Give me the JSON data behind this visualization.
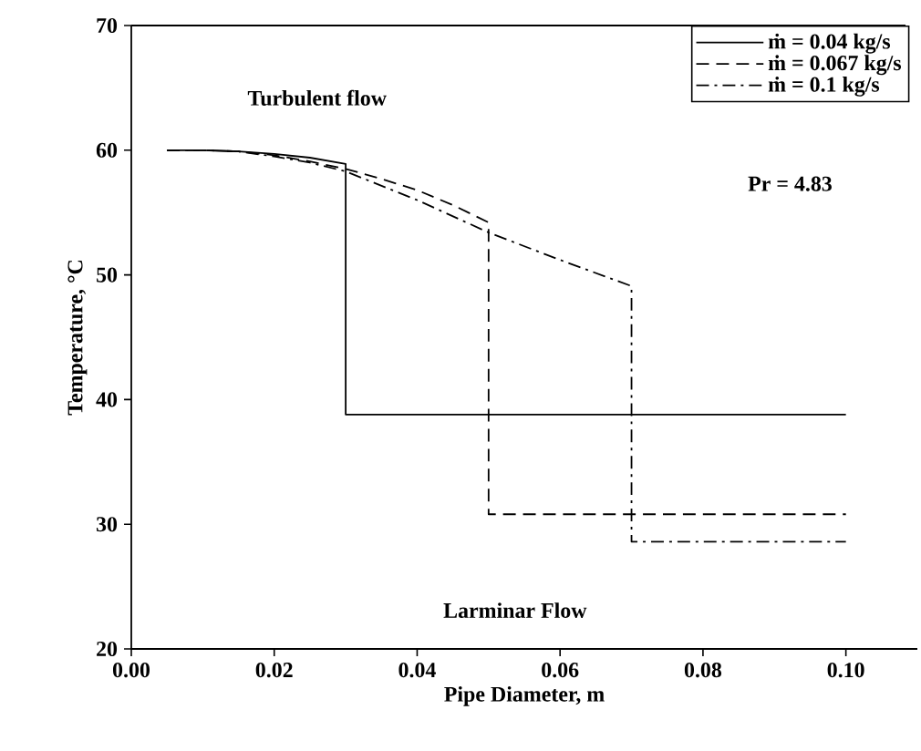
{
  "chart_data": {
    "type": "line",
    "xlabel": "Pipe Diameter, m",
    "ylabel": "Temperature, °C",
    "series": [
      {
        "name": "ṁ = 0.04 kg/s",
        "color": "#000000",
        "line_style": "solid",
        "x": [
          0.005,
          0.01,
          0.015,
          0.02,
          0.025,
          0.03,
          0.03,
          0.1
        ],
        "values": [
          60,
          60,
          59.9,
          59.7,
          59.4,
          58.9,
          38.8,
          38.8
        ]
      },
      {
        "name": "ṁ = 0.067 kg/s",
        "color": "#000000",
        "line_style": "dashed",
        "x": [
          0.005,
          0.01,
          0.015,
          0.02,
          0.025,
          0.03,
          0.035,
          0.04,
          0.045,
          0.05,
          0.05,
          0.1
        ],
        "values": [
          60,
          60,
          59.9,
          59.6,
          59.1,
          58.5,
          57.7,
          56.8,
          55.6,
          54.2,
          30.8,
          30.8
        ]
      },
      {
        "name": "ṁ = 0.1 kg/s",
        "color": "#000000",
        "line_style": "dashdot",
        "x": [
          0.005,
          0.01,
          0.015,
          0.02,
          0.025,
          0.03,
          0.04,
          0.05,
          0.06,
          0.07,
          0.07,
          0.1
        ],
        "values": [
          60,
          60,
          59.9,
          59.5,
          59.0,
          58.3,
          56.0,
          53.4,
          51.2,
          49.1,
          28.6,
          28.6
        ]
      }
    ],
    "annotations": [
      "Turbulent flow",
      "Pr = 4.83",
      "Larminar Flow"
    ],
    "xlim": [
      0,
      0.11
    ],
    "ylim": [
      20,
      70
    ],
    "xticks": [
      {
        "value": 0,
        "label": "0.00"
      },
      {
        "value": 0.02,
        "label": "0.02"
      },
      {
        "value": 0.04,
        "label": "0.04"
      },
      {
        "value": 0.06,
        "label": "0.06"
      },
      {
        "value": 0.08,
        "label": "0.08"
      },
      {
        "value": 0.1,
        "label": "0.10"
      }
    ],
    "yticks": [
      20,
      30,
      40,
      50,
      60,
      70
    ],
    "grid": false,
    "legend": "top right",
    "marker": "none"
  }
}
